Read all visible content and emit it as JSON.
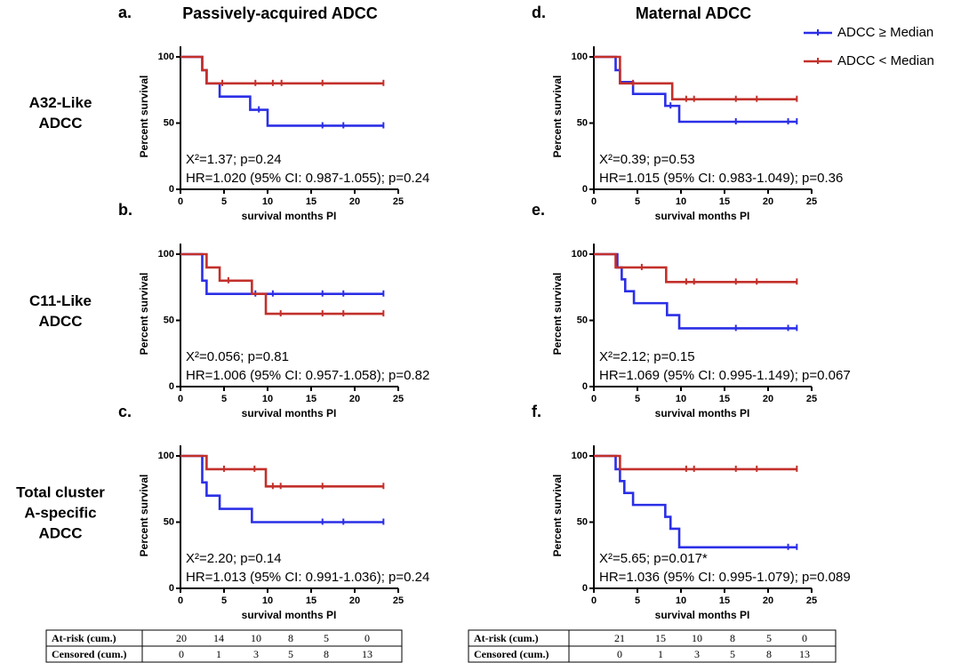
{
  "chart_data": [
    {
      "type": "line",
      "step": true,
      "label": "a.",
      "title": "Passively-acquired ADCC",
      "xlabel": "survival months PI",
      "ylabel": "Percent survival",
      "xlim": [
        0,
        25
      ],
      "ylim": [
        0,
        108
      ],
      "xticks": [
        0,
        5,
        10,
        15,
        20,
        25
      ],
      "yticks": [
        0,
        50,
        100
      ],
      "annotations": [
        "Χ²=1.37; p=0.24",
        "HR=1.020 (95% CI: 0.987-1.055); p=0.24"
      ],
      "series": [
        {
          "name": "ADCC ≥ Median",
          "color": "#2b2fe6",
          "x": [
            0,
            2.5,
            3,
            4.5,
            8,
            10,
            23.3
          ],
          "values": [
            100,
            90,
            80,
            70,
            60,
            48,
            48
          ],
          "censored": [
            9,
            16.3,
            18.7,
            23.3
          ]
        },
        {
          "name": "ADCC < Median",
          "color": "#c3302b",
          "x": [
            0,
            2.5,
            3,
            23.3
          ],
          "values": [
            100,
            90,
            80,
            80
          ],
          "censored": [
            4.8,
            8.6,
            10.6,
            11.6,
            16.3,
            23.3
          ]
        }
      ]
    },
    {
      "type": "line",
      "step": true,
      "label": "b.",
      "xlabel": "survival months PI",
      "ylabel": "Percent survival",
      "xlim": [
        0,
        25
      ],
      "ylim": [
        0,
        108
      ],
      "xticks": [
        0,
        5,
        10,
        15,
        20,
        25
      ],
      "yticks": [
        0,
        50,
        100
      ],
      "annotations": [
        "Χ²=0.056; p=0.81",
        "HR=1.006 (95% CI: 0.957-1.058); p=0.82"
      ],
      "series": [
        {
          "color": "#2b2fe6",
          "x": [
            0,
            2.5,
            3,
            23.3
          ],
          "values": [
            100,
            80,
            70,
            70
          ],
          "censored": [
            8.6,
            10.6,
            16.3,
            18.7,
            23.3
          ]
        },
        {
          "color": "#c3302b",
          "x": [
            0,
            3,
            4.5,
            8.2,
            9.8,
            23.3
          ],
          "values": [
            100,
            90,
            80,
            70,
            55,
            55
          ],
          "censored": [
            5.5,
            11.5,
            16.3,
            18.7,
            23.3
          ]
        }
      ]
    },
    {
      "type": "line",
      "step": true,
      "label": "c.",
      "xlabel": "survival months PI",
      "ylabel": "Percent survival",
      "xlim": [
        0,
        25
      ],
      "ylim": [
        0,
        108
      ],
      "xticks": [
        0,
        5,
        10,
        15,
        20,
        25
      ],
      "yticks": [
        0,
        50,
        100
      ],
      "annotations": [
        "Χ²=2.20; p=0.14",
        "HR=1.013 (95% CI: 0.991-1.036); p=0.24"
      ],
      "series": [
        {
          "color": "#2b2fe6",
          "x": [
            0,
            2.5,
            3,
            4.5,
            8.2,
            23.3
          ],
          "values": [
            100,
            80,
            70,
            60,
            50,
            50
          ],
          "censored": [
            16.3,
            18.7,
            23.3
          ]
        },
        {
          "color": "#c3302b",
          "x": [
            0,
            3,
            9.8,
            23.3
          ],
          "values": [
            100,
            90,
            77,
            77
          ],
          "censored": [
            5,
            8.5,
            10.6,
            11.5,
            16.3,
            23.3
          ]
        }
      ]
    },
    {
      "type": "line",
      "step": true,
      "label": "d.",
      "title": "Maternal ADCC",
      "xlabel": "survival months PI",
      "ylabel": "Percent survival",
      "xlim": [
        0,
        25
      ],
      "ylim": [
        0,
        108
      ],
      "xticks": [
        0,
        5,
        10,
        15,
        20,
        25
      ],
      "yticks": [
        0,
        50,
        100
      ],
      "annotations": [
        "Χ²=0.39; p=0.53",
        "HR=1.015 (95% CI: 0.983-1.049); p=0.36"
      ],
      "series": [
        {
          "color": "#2b2fe6",
          "x": [
            0,
            2.5,
            3,
            4.5,
            8.2,
            9.8,
            23.3
          ],
          "values": [
            100,
            90,
            81,
            72,
            63,
            51,
            51
          ],
          "censored": [
            8.8,
            16.3,
            22.3,
            23.3
          ]
        },
        {
          "color": "#c3302b",
          "x": [
            0,
            3,
            9,
            23.3
          ],
          "values": [
            100,
            80,
            68,
            68
          ],
          "censored": [
            4.5,
            10.6,
            11.5,
            16.3,
            18.7,
            23.3
          ]
        }
      ]
    },
    {
      "type": "line",
      "step": true,
      "label": "e.",
      "xlabel": "survival months PI",
      "ylabel": "Percent survival",
      "xlim": [
        0,
        25
      ],
      "ylim": [
        0,
        108
      ],
      "xticks": [
        0,
        5,
        10,
        15,
        20,
        25
      ],
      "yticks": [
        0,
        50,
        100
      ],
      "annotations": [
        "Χ²=2.12; p=0.15",
        "HR=1.069 (95% CI: 0.995-1.149); p=0.067"
      ],
      "series": [
        {
          "color": "#2b2fe6",
          "x": [
            0,
            2.7,
            3.2,
            3.6,
            4.6,
            8.4,
            9.8,
            23.3
          ],
          "values": [
            100,
            90,
            81,
            72,
            63,
            54,
            44,
            44
          ],
          "censored": [
            16.3,
            22.3,
            23.3
          ]
        },
        {
          "color": "#c3302b",
          "x": [
            0,
            2.5,
            8.3,
            23.3
          ],
          "values": [
            100,
            90,
            79,
            79
          ],
          "censored": [
            5.5,
            10.6,
            11.5,
            16.3,
            18.7,
            23.3
          ]
        }
      ]
    },
    {
      "type": "line",
      "step": true,
      "label": "f.",
      "xlabel": "survival months PI",
      "ylabel": "Percent survival",
      "xlim": [
        0,
        25
      ],
      "ylim": [
        0,
        108
      ],
      "xticks": [
        0,
        5,
        10,
        15,
        20,
        25
      ],
      "yticks": [
        0,
        50,
        100
      ],
      "annotations": [
        "Χ²=5.65; p=0.017*",
        "HR=1.036 (95% CI: 0.995-1.079); p=0.089"
      ],
      "series": [
        {
          "color": "#2b2fe6",
          "x": [
            0,
            2.5,
            3,
            3.5,
            4.5,
            8.2,
            8.8,
            9.8,
            23.3
          ],
          "values": [
            100,
            90,
            81,
            72,
            63,
            54,
            45,
            31,
            31
          ],
          "censored": [
            22.3,
            23.3
          ]
        },
        {
          "color": "#c3302b",
          "x": [
            0,
            3,
            23.3
          ],
          "values": [
            100,
            90,
            90
          ],
          "censored": [
            10.6,
            11.5,
            16.3,
            18.7,
            23.3
          ]
        }
      ]
    }
  ],
  "row_labels": [
    [
      "A32-Like",
      "ADCC"
    ],
    [
      "C11-Like",
      "ADCC"
    ],
    [
      "Total cluster",
      "A-specific",
      "ADCC"
    ]
  ],
  "tables": [
    {
      "rows": [
        [
          "At-risk (cum.)",
          20,
          14,
          10,
          8,
          5,
          0
        ],
        [
          "Censored (cum.)",
          0,
          1,
          3,
          5,
          8,
          13
        ]
      ]
    },
    {
      "rows": [
        [
          "At-risk (cum.)",
          21,
          15,
          10,
          8,
          5,
          0
        ],
        [
          "Censored (cum.)",
          0,
          1,
          3,
          5,
          8,
          13
        ]
      ]
    }
  ]
}
